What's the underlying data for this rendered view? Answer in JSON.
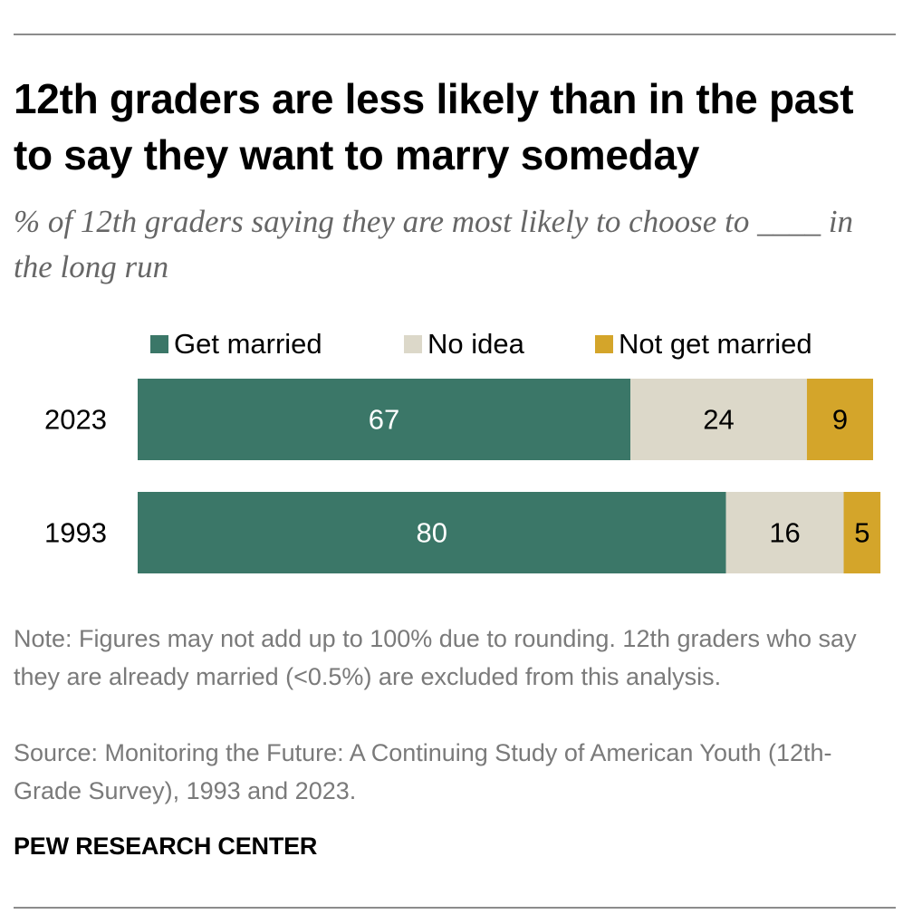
{
  "header": {
    "title": "12th graders are less likely than in the past to say they want to marry someday",
    "subtitle": "% of 12th graders saying they are most likely to choose to ____ in the long run"
  },
  "chart_data": {
    "type": "bar",
    "orientation": "horizontal",
    "stacked": true,
    "categories": [
      "2023",
      "1993"
    ],
    "series": [
      {
        "name": "Get married",
        "values": [
          67,
          80
        ],
        "color": "#3b7768",
        "label_color": "#ffffff"
      },
      {
        "name": "No idea",
        "values": [
          24,
          16
        ],
        "color": "#dcd8c9",
        "label_color": "#000000"
      },
      {
        "name": "Not get married",
        "values": [
          9,
          5
        ],
        "color": "#d4a52a",
        "label_color": "#000000"
      }
    ],
    "xlim": [
      0,
      100
    ],
    "grid": false,
    "legend_position": "top"
  },
  "footer": {
    "note": "Note: Figures may not add up to 100% due to rounding. 12th graders who say they are already married (<0.5%) are excluded from this analysis.",
    "source": "Source: Monitoring the Future: A Continuing Study of American Youth (12th-Grade Survey), 1993 and 2023.",
    "org": "PEW RESEARCH CENTER"
  }
}
